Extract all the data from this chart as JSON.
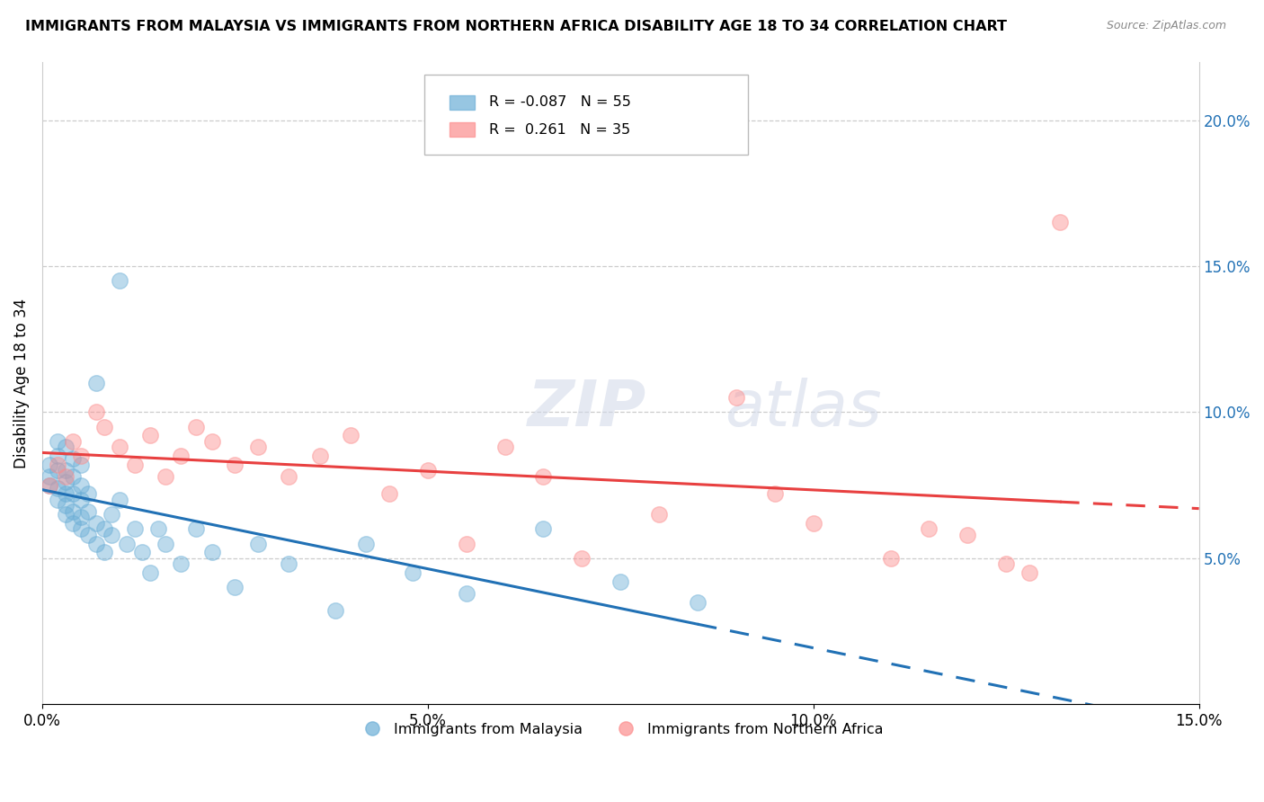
{
  "title": "IMMIGRANTS FROM MALAYSIA VS IMMIGRANTS FROM NORTHERN AFRICA DISABILITY AGE 18 TO 34 CORRELATION CHART",
  "source": "Source: ZipAtlas.com",
  "ylabel": "Disability Age 18 to 34",
  "legend_label_1": "Immigrants from Malaysia",
  "legend_label_2": "Immigrants from Northern Africa",
  "r1": "-0.087",
  "n1": "55",
  "r2": "0.261",
  "n2": "35",
  "color1": "#6baed6",
  "color2": "#fc8d8d",
  "xlim": [
    0.0,
    0.15
  ],
  "ylim": [
    0.0,
    0.22
  ],
  "xticks": [
    0.0,
    0.05,
    0.1,
    0.15
  ],
  "yticks_right": [
    0.05,
    0.1,
    0.15,
    0.2
  ],
  "malaysia_x": [
    0.001,
    0.001,
    0.001,
    0.002,
    0.002,
    0.002,
    0.002,
    0.002,
    0.003,
    0.003,
    0.003,
    0.003,
    0.003,
    0.003,
    0.004,
    0.004,
    0.004,
    0.004,
    0.004,
    0.005,
    0.005,
    0.005,
    0.005,
    0.005,
    0.006,
    0.006,
    0.006,
    0.007,
    0.007,
    0.007,
    0.008,
    0.008,
    0.009,
    0.009,
    0.01,
    0.01,
    0.011,
    0.012,
    0.013,
    0.014,
    0.015,
    0.016,
    0.018,
    0.02,
    0.022,
    0.025,
    0.028,
    0.032,
    0.038,
    0.042,
    0.048,
    0.055,
    0.065,
    0.075,
    0.085
  ],
  "malaysia_y": [
    0.075,
    0.078,
    0.082,
    0.07,
    0.074,
    0.08,
    0.085,
    0.09,
    0.065,
    0.068,
    0.072,
    0.076,
    0.08,
    0.088,
    0.062,
    0.066,
    0.072,
    0.078,
    0.084,
    0.06,
    0.064,
    0.07,
    0.075,
    0.082,
    0.058,
    0.066,
    0.072,
    0.055,
    0.062,
    0.11,
    0.052,
    0.06,
    0.058,
    0.065,
    0.145,
    0.07,
    0.055,
    0.06,
    0.052,
    0.045,
    0.06,
    0.055,
    0.048,
    0.06,
    0.052,
    0.04,
    0.055,
    0.048,
    0.032,
    0.055,
    0.045,
    0.038,
    0.06,
    0.042,
    0.035
  ],
  "nafrica_x": [
    0.001,
    0.002,
    0.003,
    0.004,
    0.005,
    0.007,
    0.008,
    0.01,
    0.012,
    0.014,
    0.016,
    0.018,
    0.02,
    0.022,
    0.025,
    0.028,
    0.032,
    0.036,
    0.04,
    0.045,
    0.05,
    0.055,
    0.06,
    0.065,
    0.07,
    0.08,
    0.09,
    0.095,
    0.1,
    0.11,
    0.115,
    0.12,
    0.125,
    0.128,
    0.132
  ],
  "nafrica_y": [
    0.075,
    0.082,
    0.078,
    0.09,
    0.085,
    0.1,
    0.095,
    0.088,
    0.082,
    0.092,
    0.078,
    0.085,
    0.095,
    0.09,
    0.082,
    0.088,
    0.078,
    0.085,
    0.092,
    0.072,
    0.08,
    0.055,
    0.088,
    0.078,
    0.05,
    0.065,
    0.105,
    0.072,
    0.062,
    0.05,
    0.06,
    0.058,
    0.048,
    0.045,
    0.165
  ]
}
